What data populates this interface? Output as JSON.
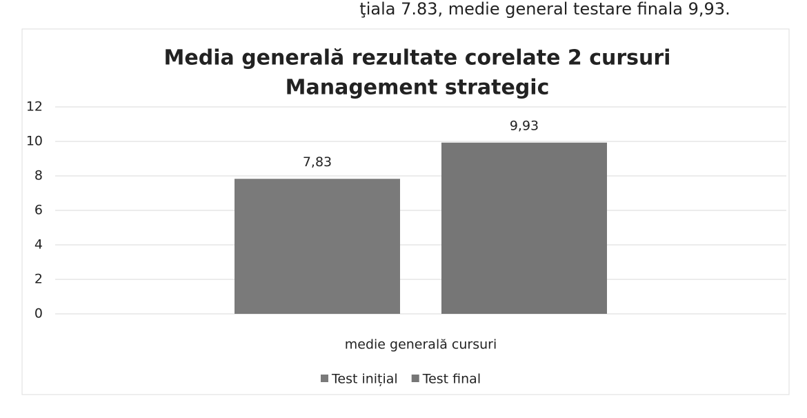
{
  "chart_data": {
    "type": "bar",
    "annotations": [
      "ţiala 7.83, medie general testare finala 9,93."
    ],
    "title": "Media generală rezultate corelate 2 cursuri",
    "subtitle": "Management strategic",
    "categories": [
      "medie generală cursuri"
    ],
    "series": [
      {
        "name": "Test inițial",
        "color": "#7a7a7a",
        "values": [
          7.83
        ],
        "value_labels": [
          "7,83"
        ]
      },
      {
        "name": "Test final",
        "color": "#767676",
        "values": [
          9.93
        ],
        "value_labels": [
          "9,93"
        ]
      }
    ],
    "ylim": [
      0,
      12
    ],
    "yticks": [
      0,
      2,
      4,
      6,
      8,
      10,
      12
    ],
    "grid": true,
    "legend": "bottom"
  }
}
